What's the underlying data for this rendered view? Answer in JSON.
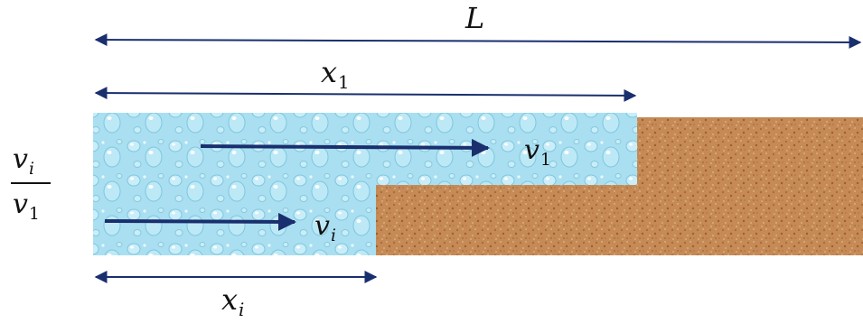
{
  "labels": {
    "total_length": "L",
    "front_1_var": "x",
    "front_1_sub": "1",
    "front_i_var": "x",
    "front_i_sub": "i",
    "velocity_1_var": "v",
    "velocity_1_sub": "1",
    "velocity_i_var": "v",
    "velocity_i_sub": "i",
    "ratio_num_var": "v",
    "ratio_num_sub": "i",
    "ratio_den_var": "v",
    "ratio_den_sub": "1"
  },
  "regions": [
    {
      "name": "water-zone",
      "fill": "water droplets",
      "color": "#a9dff0"
    },
    {
      "name": "sand-zone",
      "fill": "sand texture",
      "color": "#c58a55"
    }
  ],
  "colors": {
    "arrow": "#1a2f6e",
    "dimension": "#1a2f6e",
    "water": "#a9dff0",
    "sand": "#c58a55"
  }
}
